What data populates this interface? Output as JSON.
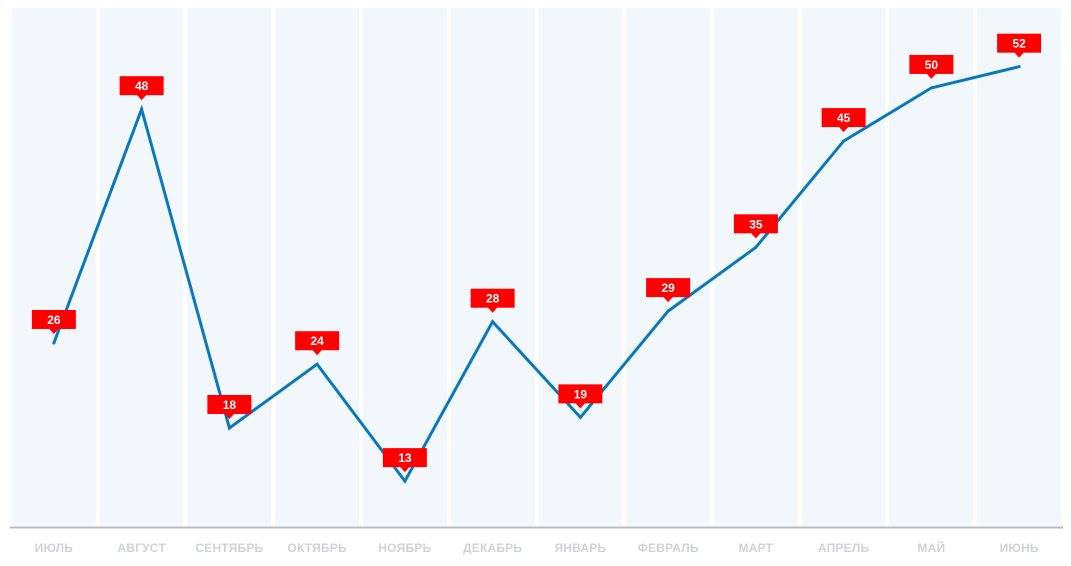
{
  "chart_data": {
    "type": "line",
    "title": "",
    "xlabel": "",
    "ylabel": "",
    "categories": [
      "ИЮЛЬ",
      "АВГУСТ",
      "СЕНТЯБРЬ",
      "ОКТЯБРЬ",
      "НОЯБРЬ",
      "ДЕКАБРЬ",
      "ЯНВАРЬ",
      "ФЕВРАЛЬ",
      "МАРТ",
      "АПРЕЛЬ",
      "МАЙ",
      "ИЮНЬ"
    ],
    "series": [
      {
        "values": [
          26,
          48,
          18,
          24,
          13,
          28,
          19,
          29,
          35,
          45,
          50,
          52
        ]
      }
    ],
    "data_labels": [
      "26",
      "48",
      "18",
      "24",
      "13",
      "28",
      "19",
      "29",
      "35",
      "45",
      "50",
      "52"
    ],
    "ylim": [
      10,
      55
    ],
    "grid": false,
    "legend": "none",
    "colors": {
      "line": "#0a78be",
      "label_bg": "#ff0000",
      "label_text": "#ffffff",
      "column_bg": "#f2f7fc",
      "axis": "#b8bcc2",
      "tick_text": "#cfd3d8"
    }
  }
}
